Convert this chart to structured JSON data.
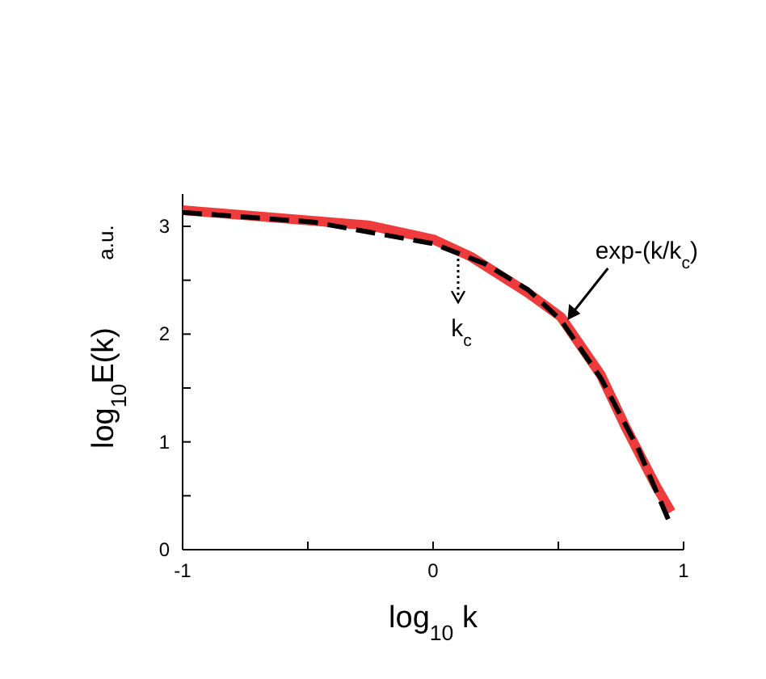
{
  "chart_data": {
    "type": "line",
    "xlabel": "log$_{10}$ k",
    "ylabel": "log$_{10}$E(k)",
    "xlim": [
      -1,
      1
    ],
    "ylim": [
      0,
      3.3
    ],
    "xticks": [
      -1,
      {
        "value": -0.5,
        "label": null
      },
      0,
      {
        "value": 0.5,
        "label": null
      },
      1
    ],
    "yticks": [
      0,
      {
        "value": 0.5,
        "label": null
      },
      1,
      {
        "value": 1.5,
        "label": null
      },
      2,
      {
        "value": 2.5,
        "label": null
      },
      3
    ],
    "series": [
      {
        "color": "#ef3b3b",
        "line_style": "solid",
        "x": [
          -1,
          -0.26,
          0,
          0.15,
          0.38,
          0.51,
          0.67,
          0.77,
          0.89,
          0.95
        ],
        "values": [
          3.15,
          3.01,
          2.88,
          2.72,
          2.38,
          2.16,
          1.62,
          1.13,
          0.59,
          0.35
        ]
      },
      {
        "color": "#000000",
        "line_style": "dashed",
        "x": [
          -1,
          -0.48,
          0,
          0.21,
          0.38,
          0.51,
          0.67,
          0.82,
          0.95
        ],
        "values": [
          3.13,
          3.04,
          2.84,
          2.65,
          2.41,
          2.13,
          1.59,
          0.93,
          0.22
        ]
      }
    ],
    "annotations": [
      "a.u.",
      {
        "text": "exp-(k/k$_{c}$)",
        "x": 0.53,
        "y": 2.1
      },
      {
        "text": "k$_{c}$",
        "x": 0.1,
        "y": 2.76
      }
    ]
  }
}
